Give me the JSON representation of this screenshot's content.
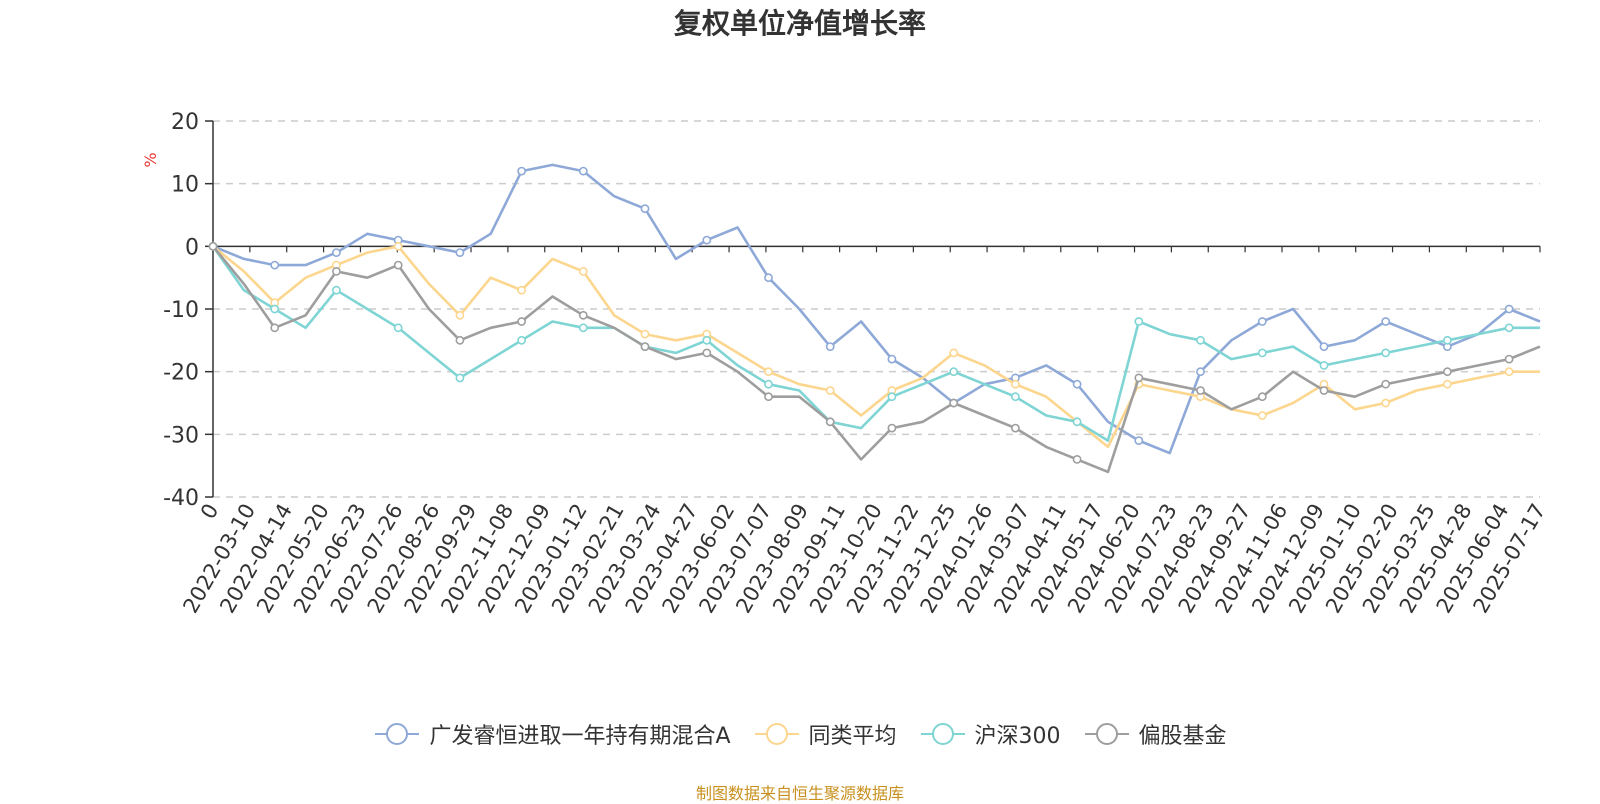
{
  "chart_data": {
    "type": "line",
    "title": "复权单位净值增长率",
    "ylabel": "%",
    "xlabel": "",
    "ylim": [
      -40,
      20
    ],
    "yticks": [
      20,
      10,
      0,
      -10,
      -20,
      -30,
      -40
    ],
    "x_tick_labels": [
      "0",
      "2022-03-10",
      "2022-04-14",
      "2022-05-20",
      "2022-06-23",
      "2022-07-26",
      "2022-08-26",
      "2022-09-29",
      "2022-11-08",
      "2022-12-09",
      "2023-01-12",
      "2023-02-21",
      "2023-03-24",
      "2023-04-27",
      "2023-06-02",
      "2023-07-07",
      "2023-08-09",
      "2023-09-11",
      "2023-10-20",
      "2023-11-22",
      "2023-12-25",
      "2024-01-26",
      "2024-03-07",
      "2024-04-11",
      "2024-05-17",
      "2024-06-20",
      "2024-07-23",
      "2024-08-23",
      "2024-09-27",
      "2024-11-06",
      "2024-12-09",
      "2025-01-10",
      "2025-02-20",
      "2025-03-25",
      "2025-04-28",
      "2025-06-04",
      "2025-07-17"
    ],
    "grid": true,
    "legend_position": "bottom",
    "series": [
      {
        "name": "广发睿恒进取一年持有期混合A",
        "color": "#8ea9d8",
        "values": [
          0,
          -2,
          -3,
          -3,
          -1,
          2,
          1,
          0,
          -1,
          2,
          12,
          13,
          12,
          8,
          6,
          -2,
          1,
          3,
          -5,
          -10,
          -16,
          -12,
          -18,
          -21,
          -25,
          -22,
          -21,
          -19,
          -22,
          -28,
          -31,
          -33,
          -20,
          -15,
          -12,
          -10,
          -16,
          -15,
          -12,
          -14,
          -16,
          -14,
          -10,
          -12
        ]
      },
      {
        "name": "同类平均",
        "color": "#fcd68e",
        "values": [
          0,
          -4,
          -9,
          -5,
          -3,
          -1,
          0,
          -6,
          -11,
          -5,
          -7,
          -2,
          -4,
          -11,
          -14,
          -15,
          -14,
          -17,
          -20,
          -22,
          -23,
          -27,
          -23,
          -21,
          -17,
          -19,
          -22,
          -24,
          -28,
          -32,
          -22,
          -23,
          -24,
          -26,
          -27,
          -25,
          -22,
          -26,
          -25,
          -23,
          -22,
          -21,
          -20,
          -20
        ]
      },
      {
        "name": "沪深300",
        "color": "#7fd4d4",
        "values": [
          0,
          -7,
          -10,
          -13,
          -7,
          -10,
          -13,
          -17,
          -21,
          -18,
          -15,
          -12,
          -13,
          -13,
          -16,
          -17,
          -15,
          -19,
          -22,
          -23,
          -28,
          -29,
          -24,
          -22,
          -20,
          -22,
          -24,
          -27,
          -28,
          -31,
          -12,
          -14,
          -15,
          -18,
          -17,
          -16,
          -19,
          -18,
          -17,
          -16,
          -15,
          -14,
          -13,
          -13
        ]
      },
      {
        "name": "偏股基金",
        "color": "#9e9e9e",
        "values": [
          0,
          -6,
          -13,
          -11,
          -4,
          -5,
          -3,
          -10,
          -15,
          -13,
          -12,
          -8,
          -11,
          -13,
          -16,
          -18,
          -17,
          -20,
          -24,
          -24,
          -28,
          -34,
          -29,
          -28,
          -25,
          -27,
          -29,
          -32,
          -34,
          -36,
          -21,
          -22,
          -23,
          -26,
          -24,
          -20,
          -23,
          -24,
          -22,
          -21,
          -20,
          -19,
          -18,
          -16
        ]
      }
    ]
  },
  "source_note": "制图数据来自恒生聚源数据库"
}
